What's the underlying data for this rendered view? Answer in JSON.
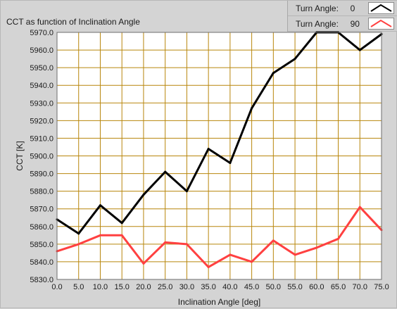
{
  "chart_data": {
    "type": "line",
    "title": "CCT as function of Inclination Angle",
    "xlabel": "Inclination Angle [deg]",
    "ylabel": "CCT [K]",
    "xlim": [
      0,
      75
    ],
    "ylim": [
      5830,
      5970
    ],
    "x_ticks": [
      "0.0",
      "5.0",
      "10.0",
      "15.0",
      "20.0",
      "25.0",
      "30.0",
      "35.0",
      "40.0",
      "45.0",
      "50.0",
      "55.0",
      "60.0",
      "65.0",
      "70.0",
      "75.0"
    ],
    "y_ticks": [
      "5830.0",
      "5840.0",
      "5850.0",
      "5860.0",
      "5870.0",
      "5880.0",
      "5890.0",
      "5900.0",
      "5910.0",
      "5920.0",
      "5930.0",
      "5940.0",
      "5950.0",
      "5960.0",
      "5970.0"
    ],
    "grid": true,
    "grid_color": "#b8860b",
    "plot_background": "#ffffff",
    "legend_position": "top-right",
    "x": [
      0,
      5,
      10,
      15,
      20,
      25,
      30,
      35,
      40,
      45,
      50,
      55,
      60,
      65,
      70,
      75
    ],
    "series": [
      {
        "name": "Turn Angle:",
        "value_label": "0",
        "color": "#000000",
        "values": [
          5864,
          5856,
          5872,
          5862,
          5878,
          5891,
          5880,
          5904,
          5896,
          5927,
          5947,
          5955,
          5970,
          5970,
          5960,
          5969
        ]
      },
      {
        "name": "Turn Angle:",
        "value_label": "90",
        "color": "#ff4040",
        "values": [
          5846,
          5850,
          5855,
          5855,
          5839,
          5851,
          5850,
          5837,
          5844,
          5840,
          5852,
          5844,
          5848,
          5853,
          5871,
          5858
        ]
      }
    ]
  }
}
